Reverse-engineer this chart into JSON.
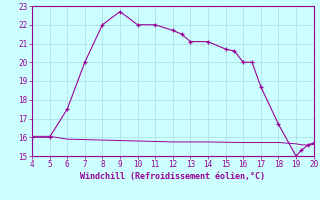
{
  "curve1_x": [
    4,
    5,
    6,
    7,
    8,
    9,
    10,
    11,
    12,
    12.5,
    13,
    14,
    15,
    15.5,
    16,
    16.5,
    17,
    18,
    19,
    19.3,
    19.7,
    20
  ],
  "curve1_y": [
    16,
    16,
    17.5,
    20,
    22,
    22.7,
    22,
    22,
    21.7,
    21.5,
    21.1,
    21.1,
    20.7,
    20.6,
    20.0,
    20.0,
    18.7,
    16.7,
    15.0,
    15.3,
    15.6,
    15.7
  ],
  "curve2_x": [
    4,
    5,
    6,
    8,
    10,
    12,
    14,
    16,
    18,
    19,
    19.3,
    19.7,
    20
  ],
  "curve2_y": [
    16.05,
    16.05,
    15.9,
    15.85,
    15.8,
    15.75,
    15.75,
    15.72,
    15.72,
    15.65,
    15.6,
    15.58,
    15.62
  ],
  "line_color": "#990099",
  "background_color": "#ccffff",
  "grid_color": "#aadddd",
  "xlabel": "Windchill (Refroidissement éolien,°C)",
  "xlim": [
    4,
    20
  ],
  "ylim": [
    15,
    23
  ],
  "xticks": [
    4,
    5,
    6,
    7,
    8,
    9,
    10,
    11,
    12,
    13,
    14,
    15,
    16,
    17,
    18,
    19,
    20
  ],
  "yticks": [
    15,
    16,
    17,
    18,
    19,
    20,
    21,
    22,
    23
  ],
  "figsize": [
    3.2,
    2.0
  ],
  "dpi": 100
}
